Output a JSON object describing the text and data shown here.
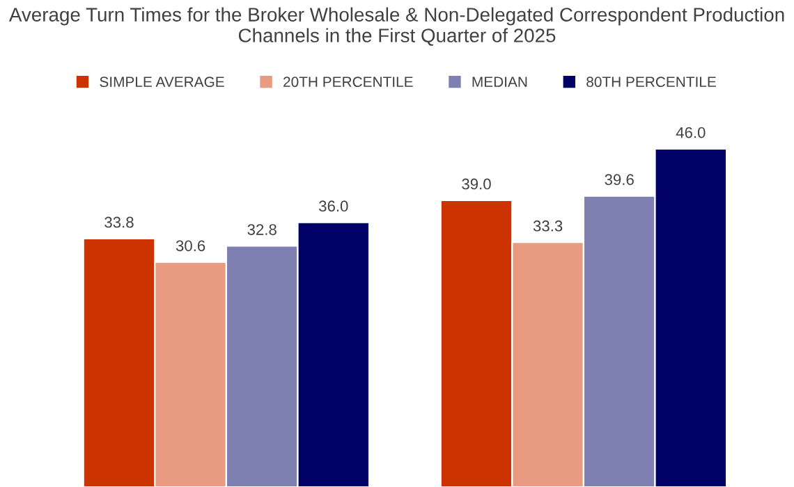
{
  "chart_data": {
    "type": "bar",
    "title": "Average Turn Times for the Broker Wholesale & Non-Delegated Correspondent Production Channels in the First Quarter of 2025",
    "categories": [
      null,
      null
    ],
    "series": [
      {
        "name": "SIMPLE AVERAGE",
        "color": "#cc3300",
        "values": [
          33.8,
          39.0
        ],
        "value_labels": [
          "33.8",
          "39.0"
        ]
      },
      {
        "name": "20TH PERCENTILE",
        "color": "#e89b80",
        "values": [
          30.6,
          33.3
        ],
        "value_labels": [
          "30.6",
          "33.3"
        ]
      },
      {
        "name": "MEDIAN",
        "color": "#7f80b2",
        "values": [
          32.8,
          39.6
        ],
        "value_labels": [
          "32.8",
          "39.6"
        ]
      },
      {
        "name": "80TH PERCENTILE",
        "color": "#000066",
        "values": [
          36.0,
          46.0
        ],
        "value_labels": [
          "36.0",
          "46.0"
        ]
      }
    ],
    "legend": "top",
    "grid": false,
    "tick_labels": false
  }
}
